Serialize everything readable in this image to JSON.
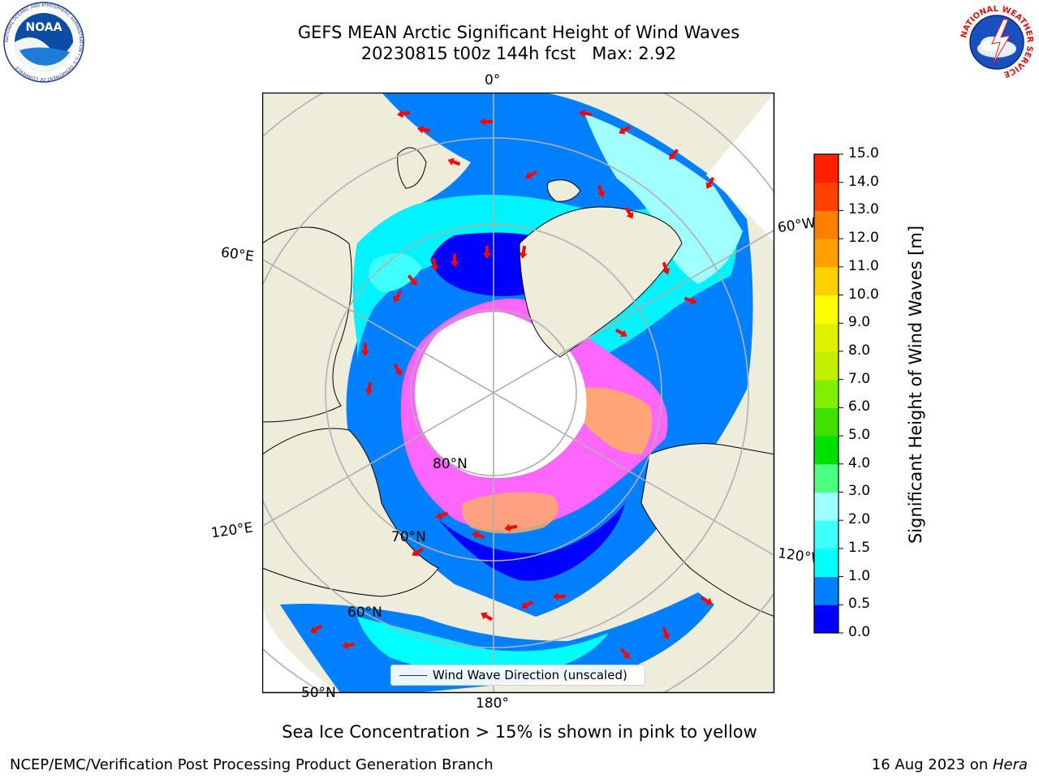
{
  "header": {
    "title_line1": "GEFS MEAN Arctic Significant Height of Wind Waves",
    "title_line2": "20230815 t00z 144h fcst   Max: 2.92"
  },
  "logos": {
    "noaa_text": "NOAA",
    "noaa_ring": "NATIONAL OCEANIC AND ATMOSPHERIC ADMINISTRATION • U.S. DEPARTMENT OF COMMERCE",
    "nws_ring": "NATIONAL WEATHER SERVICE"
  },
  "map": {
    "projection": "north polar stereographic",
    "longitude_labels": {
      "lon_0": "0°",
      "lon_60e": "60°E",
      "lon_60w": "60°W",
      "lon_120e": "120°E",
      "lon_120w": "120°W",
      "lon_180": "180°"
    },
    "latitude_labels": {
      "lat_80": "80°N",
      "lat_70": "70°N",
      "lat_60": "60°N",
      "lat_50": "50°N"
    },
    "colors": {
      "land": "#EEEDDC",
      "ocean_low": "#0000FF",
      "ocean_0_5": "#0080FF",
      "ocean_1_0": "#00FFFF",
      "ocean_1_5": "#40FFFF",
      "ocean_2_0": "#A0FFFF",
      "sea_ice_pink": "#FF66FF",
      "sea_ice_orange": "#FFB060",
      "ice_pack": "#FFFFFF",
      "arrows": "#FF0000",
      "gridlines": "#B0B0B0"
    },
    "legend_text": "Wind Wave Direction (unscaled)"
  },
  "colorbar": {
    "label": "Significant Height of Wind Waves [m]",
    "ticks": [
      "0.0",
      "0.5",
      "1.0",
      "1.5",
      "2.0",
      "3.0",
      "4.0",
      "5.0",
      "6.0",
      "7.0",
      "8.0",
      "9.0",
      "10.0",
      "11.0",
      "12.0",
      "13.0",
      "14.0",
      "15.0"
    ],
    "colors": [
      "#0000FF",
      "#0080FF",
      "#00FFFF",
      "#40FFFF",
      "#A0FFFF",
      "#4CFF80",
      "#00E000",
      "#40E000",
      "#80F000",
      "#C0F000",
      "#E0F000",
      "#FFFF00",
      "#FFD000",
      "#FFA000",
      "#FF8000",
      "#FF4000",
      "#FF2000"
    ]
  },
  "footer": {
    "subtitle": "Sea Ice Concentration > 15% is shown in pink to yellow",
    "credit": "NCEP/EMC/Verification Post Processing Product Generation Branch",
    "date": "16 Aug 2023 on ",
    "host": "Hera"
  }
}
